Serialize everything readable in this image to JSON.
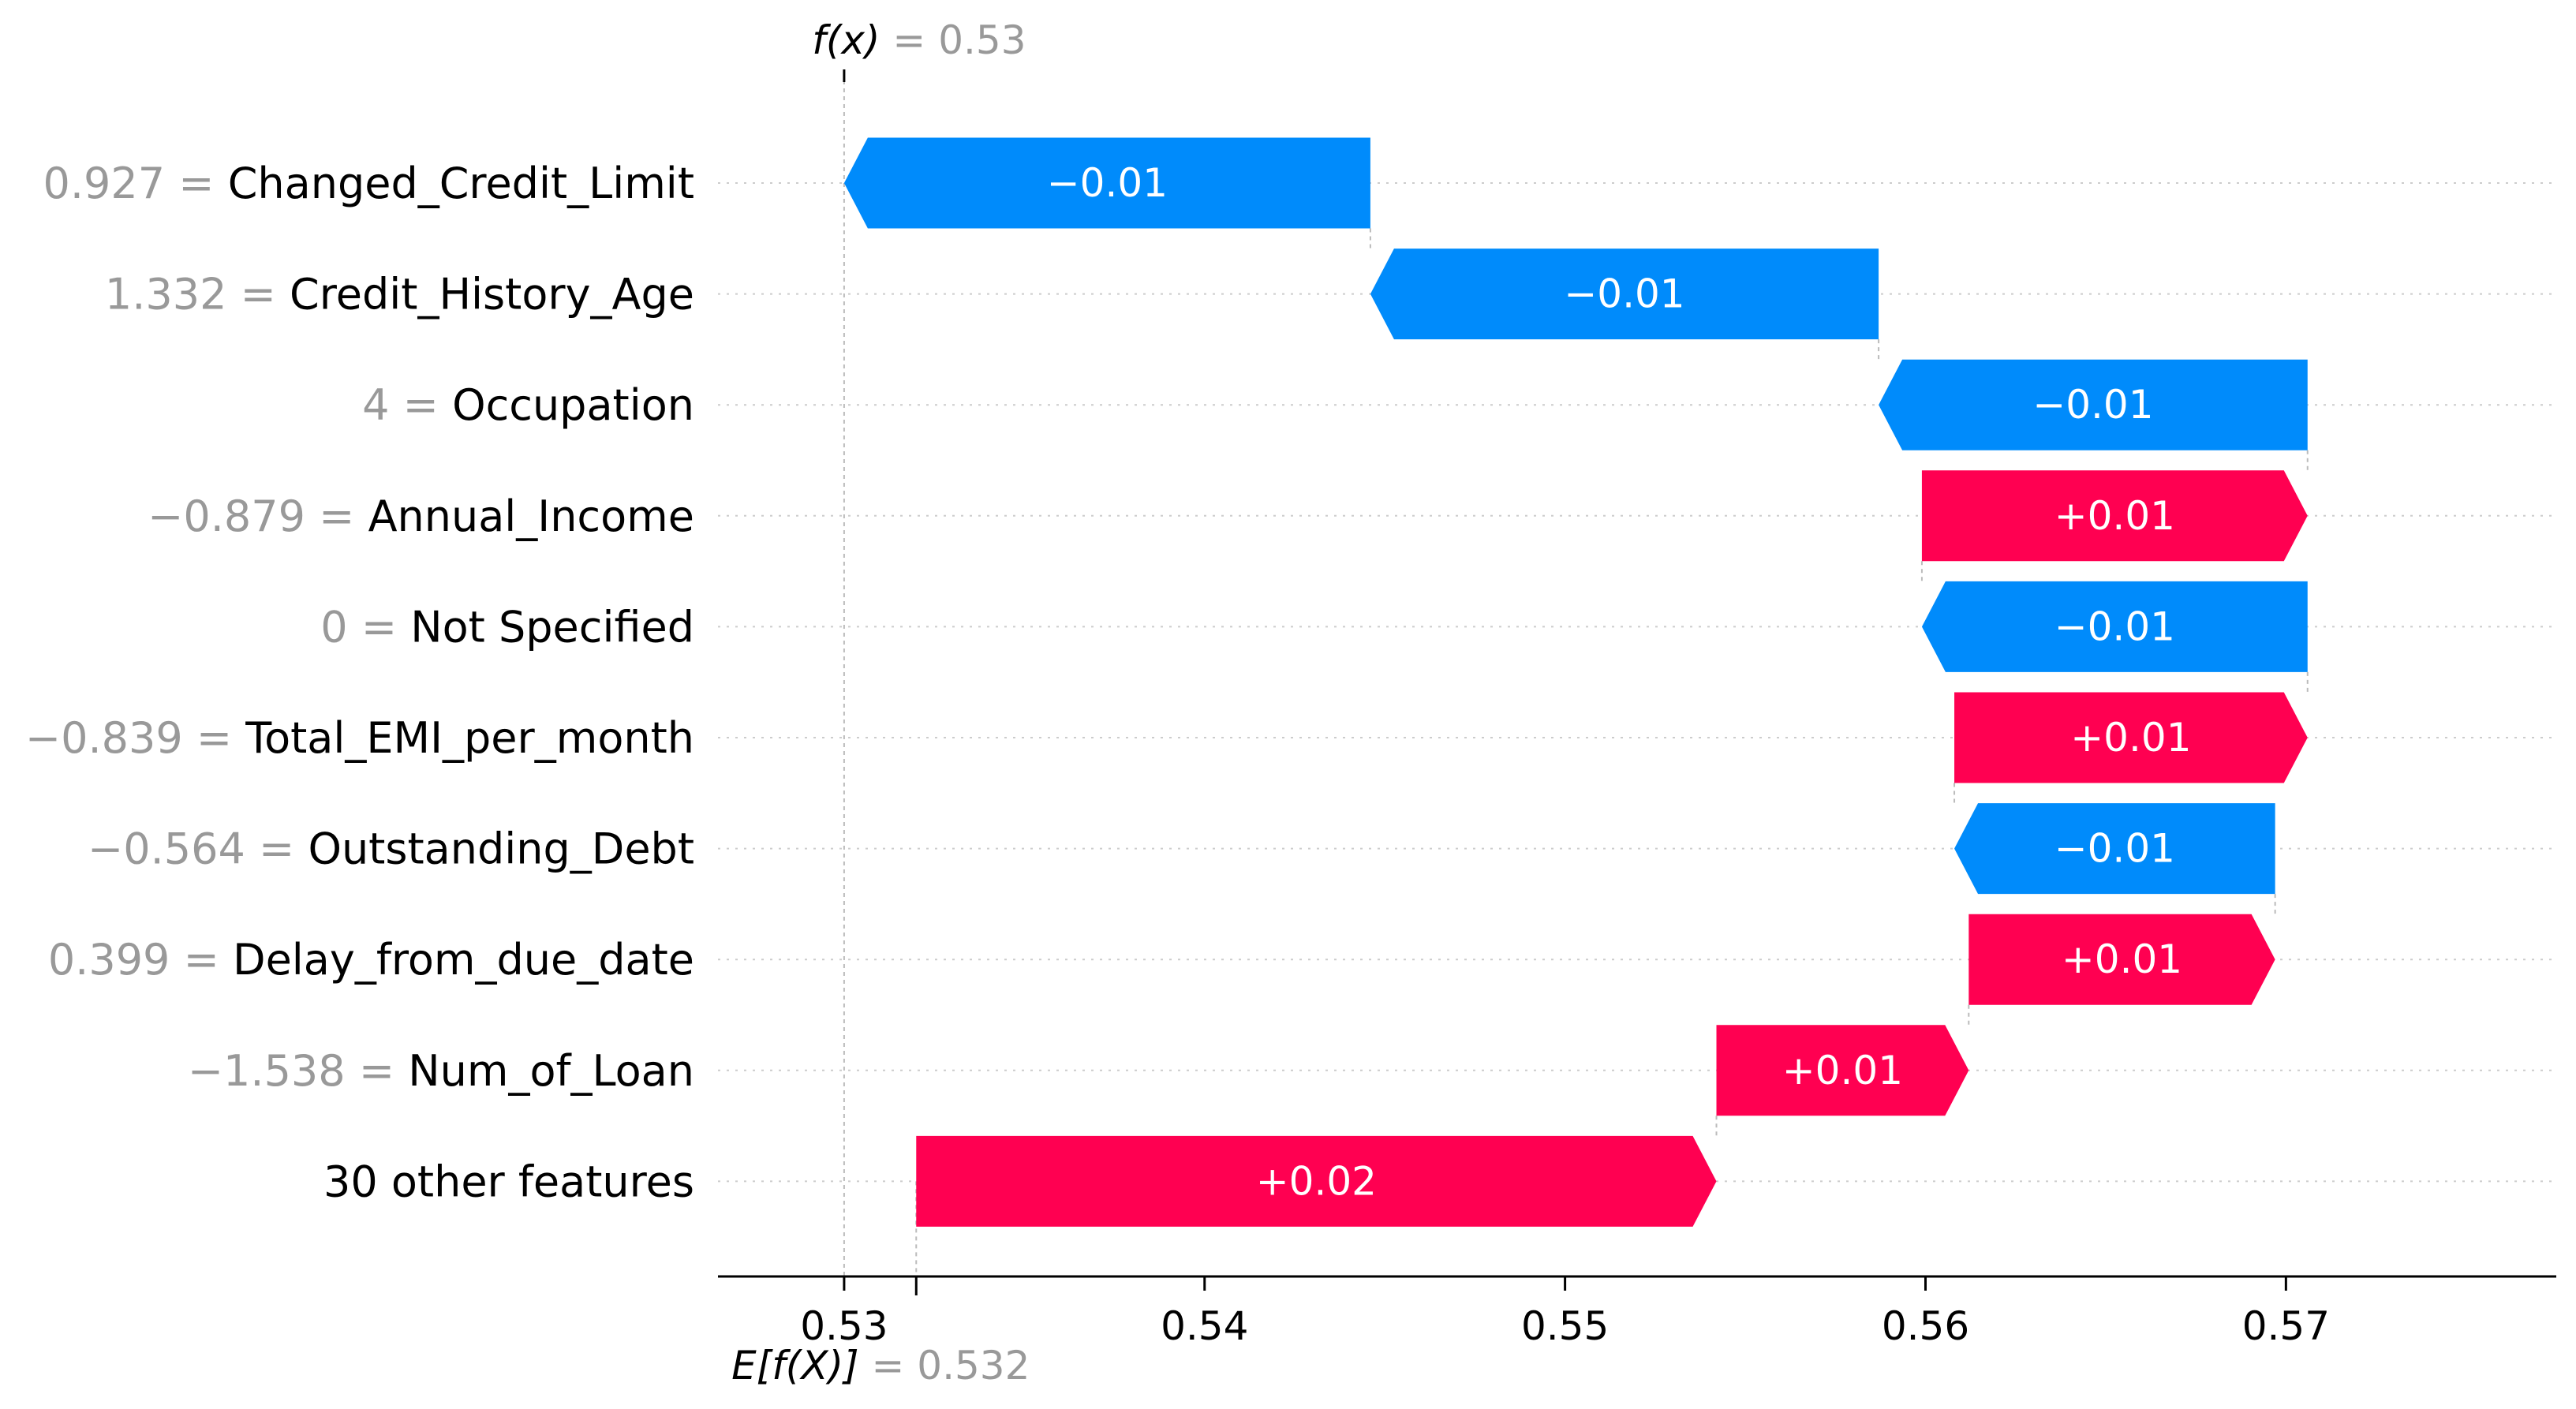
{
  "chart_data": {
    "type": "waterfall",
    "fx": {
      "label_prefix": "f(x)",
      "equals": " = ",
      "value_text": "0.53",
      "value": 0.53
    },
    "base": {
      "label_prefix": "E[f(X)]",
      "equals": " = ",
      "value_text": "0.532",
      "value": 0.532
    },
    "features": [
      {
        "name": "Changed_Credit_Limit",
        "value_text": "0.927",
        "start": 0.5446,
        "end": 0.53,
        "label": "−0.01"
      },
      {
        "name": "Credit_History_Age",
        "value_text": "1.332",
        "start": 0.5587,
        "end": 0.5446,
        "label": "−0.01"
      },
      {
        "name": "Occupation",
        "value_text": "4",
        "start": 0.5706,
        "end": 0.5587,
        "label": "−0.01"
      },
      {
        "name": "Annual_Income",
        "value_text": "−0.879",
        "start": 0.5599,
        "end": 0.5706,
        "label": "+0.01"
      },
      {
        "name": "Not Specified",
        "value_text": "0",
        "start": 0.5706,
        "end": 0.5599,
        "label": "−0.01"
      },
      {
        "name": "Total_EMI_per_month",
        "value_text": "−0.839",
        "start": 0.5608,
        "end": 0.5706,
        "label": "+0.01"
      },
      {
        "name": "Outstanding_Debt",
        "value_text": "−0.564",
        "start": 0.5697,
        "end": 0.5608,
        "label": "−0.01"
      },
      {
        "name": "Delay_from_due_date",
        "value_text": "0.399",
        "start": 0.5612,
        "end": 0.5697,
        "label": "+0.01"
      },
      {
        "name": "Num_of_Loan",
        "value_text": "−1.538",
        "start": 0.5542,
        "end": 0.5612,
        "label": "+0.01"
      },
      {
        "name": "30 other features",
        "value_text": "",
        "start": 0.532,
        "end": 0.5542,
        "label": "+0.02"
      }
    ],
    "x_ticks": [
      {
        "value": 0.53,
        "label": "0.53"
      },
      {
        "value": 0.54,
        "label": "0.54"
      },
      {
        "value": 0.55,
        "label": "0.55"
      },
      {
        "value": 0.56,
        "label": "0.56"
      },
      {
        "value": 0.57,
        "label": "0.57"
      }
    ],
    "xlim": [
      0.5265,
      0.5775
    ],
    "colors": {
      "positive": "#ff0051",
      "negative": "#008bfb",
      "feature_value": "#999999",
      "grid": "#cccccc",
      "axis": "#000000"
    },
    "grid": true
  }
}
